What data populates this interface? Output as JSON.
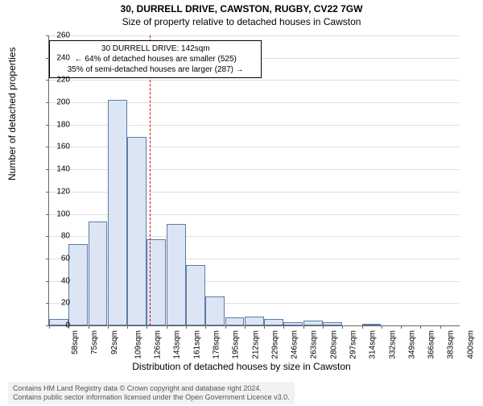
{
  "title_main": "30, DURRELL DRIVE, CAWSTON, RUGBY, CV22 7GW",
  "title_sub": "Size of property relative to detached houses in Cawston",
  "y_axis_label": "Number of detached properties",
  "x_axis_label": "Distribution of detached houses by size in Cawston",
  "chart": {
    "type": "histogram",
    "ylim": [
      0,
      260
    ],
    "ytick_step": 20,
    "bar_fill": "#dbe5f4",
    "bar_border": "#5b7ba8",
    "grid_color": "#e0e0e0",
    "background": "#ffffff",
    "ref_line_color": "#cc0000",
    "ref_line_position": 142,
    "x_categories": [
      "58sqm",
      "75sqm",
      "92sqm",
      "109sqm",
      "126sqm",
      "143sqm",
      "161sqm",
      "178sqm",
      "195sqm",
      "212sqm",
      "229sqm",
      "246sqm",
      "263sqm",
      "280sqm",
      "297sqm",
      "314sqm",
      "332sqm",
      "349sqm",
      "366sqm",
      "383sqm",
      "400sqm"
    ],
    "values": [
      6,
      73,
      93,
      202,
      169,
      77,
      91,
      54,
      26,
      7,
      8,
      6,
      3,
      4,
      3,
      0,
      1,
      0,
      0,
      0,
      0
    ]
  },
  "annotation": {
    "line1": "30 DURRELL DRIVE: 142sqm",
    "line2": "← 64% of detached houses are smaller (525)",
    "line3": "35% of semi-detached houses are larger (287) →"
  },
  "footer": {
    "line1": "Contains HM Land Registry data © Crown copyright and database right 2024.",
    "line2": "Contains public sector information licensed under the Open Government Licence v3.0."
  }
}
